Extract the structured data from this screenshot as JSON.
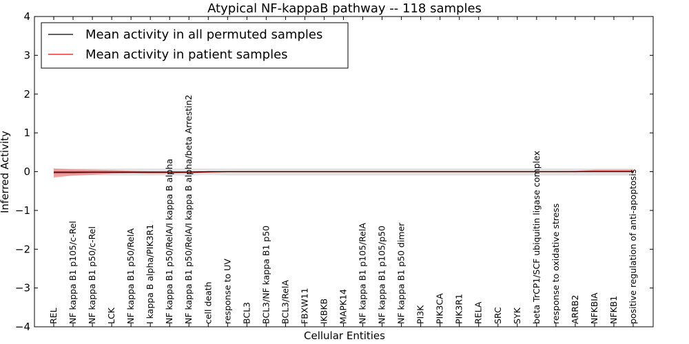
{
  "chart_data": {
    "type": "line",
    "title": "Atypical NF-kappaB pathway -- 118 samples",
    "xlabel": "Cellular Entities",
    "ylabel": "Inferred Activity",
    "ylim": [
      -4,
      4
    ],
    "yticks": [
      -4,
      -3,
      -2,
      -1,
      0,
      1,
      2,
      3,
      4
    ],
    "grid": false,
    "legend_position": "top-left",
    "categories": [
      "REL",
      "NF kappa B1 p105/c-Rel",
      "NF kappa B1 p50/c-Rel",
      "LCK",
      "NF kappa B1 p50/RelA",
      "I kappa B alpha/PIK3R1",
      "NF kappa B1 p50/RelA/I kappa B alpha",
      "NF kappa B1 p50/RelA/I kappa B alpha/beta Arrestin2",
      "cell death",
      "response to UV",
      "BCL3",
      "BCL3/NF kappa B1 p50",
      "BCL3/RelA",
      "FBXW11",
      "IKBKB",
      "MAPK14",
      "NF kappa B1 p105/RelA",
      "NF kappa B1 p105/p50",
      "NF kappa B1 p50 dimer",
      "PI3K",
      "PIK3CA",
      "PIK3R1",
      "RELA",
      "SRC",
      "SYK",
      "beta TrCP1/SCF ubiquitin ligase complex",
      "response to oxidative stress",
      "ARRB2",
      "NFKBIA",
      "NFKB1",
      "positive regulation of anti-apoptosis"
    ],
    "series": [
      {
        "name": "Mean activity in all permuted samples",
        "color": "#000000",
        "values": [
          -0.01,
          -0.01,
          -0.01,
          -0.01,
          -0.01,
          -0.01,
          -0.01,
          -0.01,
          0.0,
          0.0,
          0.0,
          0.0,
          0.0,
          0.0,
          0.0,
          0.0,
          0.0,
          0.0,
          0.0,
          0.0,
          0.0,
          0.0,
          0.0,
          0.0,
          0.0,
          0.0,
          0.0,
          0.0,
          0.0,
          0.0,
          0.0
        ],
        "band_lower": [
          -0.1,
          -0.1,
          -0.1,
          -0.1,
          -0.1,
          -0.1,
          -0.1,
          -0.1,
          -0.08,
          -0.1,
          -0.1,
          -0.1,
          -0.1,
          -0.1,
          -0.1,
          -0.1,
          -0.1,
          -0.1,
          -0.1,
          -0.1,
          -0.1,
          -0.1,
          -0.1,
          -0.1,
          -0.1,
          -0.1,
          -0.1,
          -0.1,
          -0.1,
          -0.1,
          -0.1
        ],
        "band_upper": [
          0.08,
          0.08,
          0.08,
          0.08,
          0.08,
          0.08,
          0.08,
          0.08,
          0.08,
          0.08,
          0.08,
          0.08,
          0.08,
          0.08,
          0.08,
          0.08,
          0.08,
          0.08,
          0.08,
          0.08,
          0.08,
          0.08,
          0.08,
          0.08,
          0.08,
          0.08,
          0.08,
          0.08,
          0.08,
          0.08,
          0.08
        ]
      },
      {
        "name": "Mean activity in patient samples",
        "color": "#ff0000",
        "band_color": "#f08080",
        "values": [
          -0.03,
          -0.03,
          -0.02,
          -0.02,
          -0.02,
          -0.02,
          -0.02,
          -0.02,
          -0.01,
          0.0,
          0.0,
          0.0,
          0.0,
          0.0,
          0.0,
          0.0,
          0.0,
          0.0,
          0.0,
          0.0,
          0.0,
          0.0,
          0.0,
          0.0,
          0.0,
          0.0,
          0.0,
          0.0,
          0.01,
          0.01,
          0.01
        ],
        "band_lower": [
          -0.15,
          -0.1,
          -0.08,
          -0.05,
          -0.04,
          -0.05,
          -0.05,
          -0.04,
          -0.02,
          -0.01,
          -0.01,
          -0.01,
          -0.01,
          -0.01,
          -0.01,
          -0.01,
          -0.01,
          -0.01,
          -0.01,
          -0.01,
          -0.01,
          -0.01,
          -0.01,
          -0.01,
          -0.01,
          -0.01,
          -0.01,
          -0.01,
          -0.01,
          -0.01,
          -0.01
        ],
        "band_upper": [
          0.08,
          0.06,
          0.05,
          0.04,
          0.02,
          0.01,
          0.01,
          0.01,
          0.01,
          0.01,
          0.01,
          0.01,
          0.01,
          0.01,
          0.01,
          0.01,
          0.01,
          0.01,
          0.01,
          0.01,
          0.01,
          0.01,
          0.01,
          0.01,
          0.01,
          0.01,
          0.01,
          0.02,
          0.05,
          0.05,
          0.05
        ]
      }
    ]
  }
}
